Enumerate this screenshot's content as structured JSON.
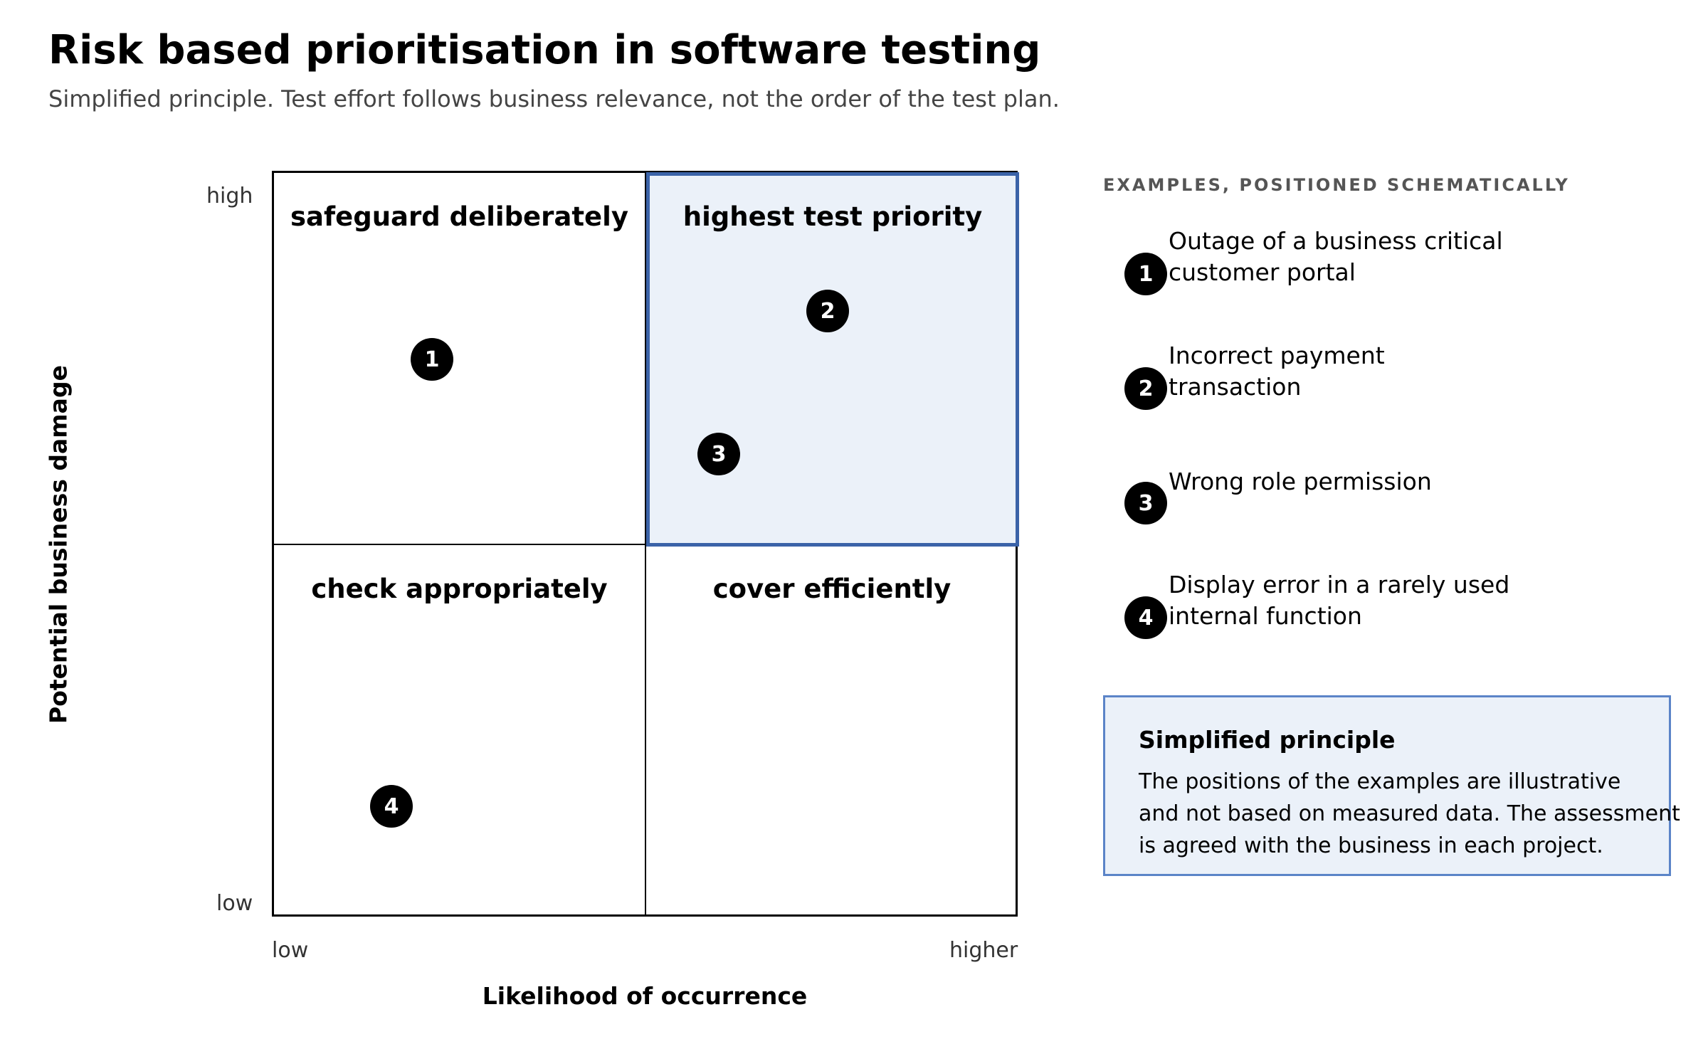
{
  "header": {
    "title": "Risk based prioritisation in software testing",
    "subtitle": "Simplified principle. Test effort follows business relevance, not the order of the test plan."
  },
  "matrix": {
    "quadrants": {
      "top_left": "safeguard deliberately",
      "top_right": "highest test priority",
      "bottom_left": "check appropriately",
      "bottom_right": "cover efficiently"
    },
    "highlighted_quadrant": "top_right",
    "highlight_color": "#3b63a8",
    "highlight_fill": "#ebf1f9",
    "y_axis": {
      "label": "Potential business damage",
      "tick_high": "high",
      "tick_low": "low"
    },
    "x_axis": {
      "label": "Likelihood of occurrence",
      "tick_low": "low",
      "tick_high": "higher"
    },
    "markers": [
      "1",
      "2",
      "3",
      "4"
    ]
  },
  "examples": {
    "heading": "EXAMPLES, POSITIONED SCHEMATICALLY",
    "items": [
      {
        "number": "1",
        "line1": "Outage of a business critical",
        "line2": "customer portal"
      },
      {
        "number": "2",
        "line1": "Incorrect payment",
        "line2": "transaction"
      },
      {
        "number": "3",
        "line1": "Wrong role permission",
        "line2": ""
      },
      {
        "number": "4",
        "line1": "Display error in a rarely used",
        "line2": "internal function"
      }
    ]
  },
  "principle": {
    "title": "Simplified principle",
    "line1": "The positions of the examples are illustrative",
    "line2": "and not based on measured data. The assessment",
    "line3": "is agreed with the business in each project."
  }
}
